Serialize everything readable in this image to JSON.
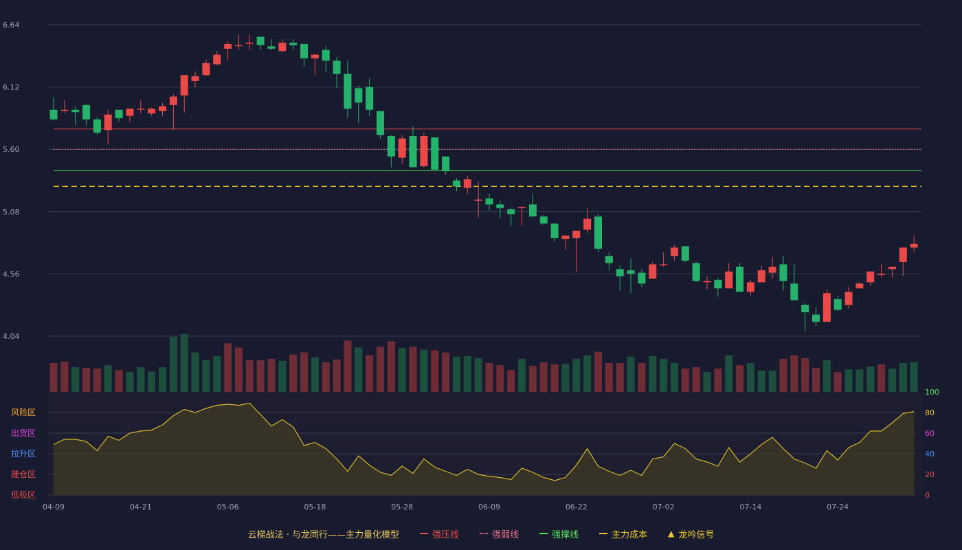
{
  "colors": {
    "up": "#e84a4a",
    "down": "#26b26b",
    "vol_up": "#6e2d36",
    "vol_down": "#1d4f3e",
    "grid": "#3a3d52",
    "axis_text": "#9aa0b8",
    "pressure": "#e84a4a",
    "weak": "#e8708a",
    "support": "#4ee65a",
    "cost": "#f0c82a",
    "signal": "#f0c82a",
    "osc_line": "#d9b530",
    "osc_fill": "#3a3425"
  },
  "legend": {
    "model": "云梯战法 · 与龙同行——主力量化模型",
    "pressure": "强压线",
    "weak": "强弱线",
    "support": "强撑线",
    "cost": "主力成本",
    "signal": "龙吟信号",
    "signal_icon": "▲"
  },
  "chart_data": {
    "type": "candlestick",
    "price_ticks": [
      "6.64",
      "6.12",
      "5.60",
      "5.08",
      "4.56",
      "4.04"
    ],
    "ylim": [
      4.04,
      6.64
    ],
    "x_ticks": [
      {
        "index": 0,
        "label": "04-09"
      },
      {
        "index": 8,
        "label": "04-21"
      },
      {
        "index": 16,
        "label": "05-06"
      },
      {
        "index": 24,
        "label": "05-18"
      },
      {
        "index": 32,
        "label": "05-28"
      },
      {
        "index": 40,
        "label": "06-09"
      },
      {
        "index": 48,
        "label": "06-22"
      },
      {
        "index": 56,
        "label": "07-02"
      },
      {
        "index": 64,
        "label": "07-14"
      },
      {
        "index": 72,
        "label": "07-24"
      }
    ],
    "candles": [
      [
        5.93,
        5.85,
        6.03,
        5.84
      ],
      [
        5.93,
        5.93,
        6.01,
        5.9
      ],
      [
        5.93,
        5.91,
        5.96,
        5.8
      ],
      [
        5.97,
        5.85,
        5.98,
        5.8
      ],
      [
        5.85,
        5.74,
        5.87,
        5.72
      ],
      [
        5.76,
        5.89,
        5.93,
        5.64
      ],
      [
        5.93,
        5.86,
        5.93,
        5.83
      ],
      [
        5.88,
        5.94,
        5.94,
        5.83
      ],
      [
        5.94,
        5.94,
        6.01,
        5.9
      ],
      [
        5.9,
        5.94,
        5.95,
        5.88
      ],
      [
        5.92,
        5.96,
        5.99,
        5.88
      ],
      [
        5.97,
        6.04,
        6.06,
        5.76
      ],
      [
        6.05,
        6.22,
        6.22,
        5.91
      ],
      [
        6.17,
        6.21,
        6.25,
        6.12
      ],
      [
        6.22,
        6.32,
        6.35,
        6.21
      ],
      [
        6.31,
        6.39,
        6.42,
        6.3
      ],
      [
        6.44,
        6.48,
        6.5,
        6.34
      ],
      [
        6.47,
        6.47,
        6.56,
        6.43
      ],
      [
        6.49,
        6.49,
        6.56,
        6.43
      ],
      [
        6.54,
        6.47,
        6.54,
        6.43
      ],
      [
        6.46,
        6.44,
        6.52,
        6.43
      ],
      [
        6.42,
        6.49,
        6.52,
        6.41
      ],
      [
        6.49,
        6.47,
        6.52,
        6.43
      ],
      [
        6.48,
        6.36,
        6.48,
        6.29
      ],
      [
        6.36,
        6.39,
        6.4,
        6.22
      ],
      [
        6.43,
        6.34,
        6.46,
        6.24
      ],
      [
        6.34,
        6.23,
        6.37,
        6.11
      ],
      [
        6.23,
        5.94,
        6.34,
        5.86
      ],
      [
        6.11,
        5.99,
        6.13,
        5.82
      ],
      [
        6.12,
        5.93,
        6.19,
        5.88
      ],
      [
        5.92,
        5.72,
        5.92,
        5.69
      ],
      [
        5.71,
        5.54,
        5.72,
        5.45
      ],
      [
        5.53,
        5.69,
        5.72,
        5.48
      ],
      [
        5.71,
        5.45,
        5.79,
        5.45
      ],
      [
        5.46,
        5.71,
        5.74,
        5.45
      ],
      [
        5.7,
        5.43,
        5.7,
        5.43
      ],
      [
        5.54,
        5.42,
        5.54,
        5.39
      ],
      [
        5.34,
        5.29,
        5.36,
        5.25
      ],
      [
        5.28,
        5.35,
        5.38,
        5.23
      ],
      [
        5.18,
        5.18,
        5.33,
        5.03
      ],
      [
        5.19,
        5.14,
        5.23,
        5.09
      ],
      [
        5.14,
        5.11,
        5.17,
        5.03
      ],
      [
        5.1,
        5.06,
        5.11,
        4.96
      ],
      [
        5.12,
        5.12,
        5.12,
        4.96
      ],
      [
        5.14,
        5.04,
        5.23,
        5.04
      ],
      [
        5.04,
        4.98,
        5.05,
        4.97
      ],
      [
        4.98,
        4.86,
        4.98,
        4.83
      ],
      [
        4.85,
        4.88,
        4.88,
        4.76
      ],
      [
        4.86,
        4.92,
        4.92,
        4.58
      ],
      [
        4.93,
        5.02,
        5.11,
        4.9
      ],
      [
        5.04,
        4.77,
        5.06,
        4.74
      ],
      [
        4.71,
        4.65,
        4.74,
        4.59
      ],
      [
        4.6,
        4.54,
        4.63,
        4.42
      ],
      [
        4.59,
        4.56,
        4.69,
        4.4
      ],
      [
        4.57,
        4.48,
        4.6,
        4.45
      ],
      [
        4.52,
        4.64,
        4.66,
        4.52
      ],
      [
        4.64,
        4.64,
        4.74,
        4.62
      ],
      [
        4.71,
        4.78,
        4.8,
        4.67
      ],
      [
        4.79,
        4.67,
        4.79,
        4.66
      ],
      [
        4.65,
        4.5,
        4.66,
        4.49
      ],
      [
        4.5,
        4.5,
        4.54,
        4.43
      ],
      [
        4.51,
        4.44,
        4.53,
        4.37
      ],
      [
        4.44,
        4.58,
        4.65,
        4.44
      ],
      [
        4.62,
        4.41,
        4.65,
        4.41
      ],
      [
        4.41,
        4.49,
        4.51,
        4.38
      ],
      [
        4.49,
        4.59,
        4.63,
        4.53
      ],
      [
        4.57,
        4.62,
        4.7,
        4.52
      ],
      [
        4.64,
        4.5,
        4.71,
        4.42
      ],
      [
        4.48,
        4.34,
        4.64,
        4.34
      ],
      [
        4.3,
        4.24,
        4.32,
        4.08
      ],
      [
        4.22,
        4.16,
        4.28,
        4.12
      ],
      [
        4.16,
        4.4,
        4.43,
        4.16
      ],
      [
        4.35,
        4.26,
        4.38,
        4.25
      ],
      [
        4.3,
        4.41,
        4.45,
        4.27
      ],
      [
        4.44,
        4.48,
        4.49,
        4.45
      ],
      [
        4.49,
        4.58,
        4.58,
        4.46
      ],
      [
        4.56,
        4.56,
        4.64,
        4.53
      ],
      [
        4.6,
        4.62,
        4.62,
        4.53
      ],
      [
        4.66,
        4.78,
        4.78,
        4.54
      ],
      [
        4.78,
        4.81,
        4.88,
        4.74
      ]
    ],
    "volumes": [
      {
        "v": 41,
        "up": true
      },
      {
        "v": 43,
        "up": true
      },
      {
        "v": 35,
        "up": false
      },
      {
        "v": 34,
        "up": true
      },
      {
        "v": 33,
        "up": true
      },
      {
        "v": 38,
        "up": false
      },
      {
        "v": 31,
        "up": true
      },
      {
        "v": 28,
        "up": false
      },
      {
        "v": 35,
        "up": false
      },
      {
        "v": 29,
        "up": false
      },
      {
        "v": 35,
        "up": false
      },
      {
        "v": 78,
        "up": false
      },
      {
        "v": 82,
        "up": false
      },
      {
        "v": 56,
        "up": false
      },
      {
        "v": 45,
        "up": false
      },
      {
        "v": 51,
        "up": false
      },
      {
        "v": 69,
        "up": true
      },
      {
        "v": 63,
        "up": true
      },
      {
        "v": 45,
        "up": true
      },
      {
        "v": 45,
        "up": true
      },
      {
        "v": 47,
        "up": true
      },
      {
        "v": 44,
        "up": false
      },
      {
        "v": 53,
        "up": true
      },
      {
        "v": 56,
        "up": true
      },
      {
        "v": 49,
        "up": false
      },
      {
        "v": 42,
        "up": true
      },
      {
        "v": 46,
        "up": true
      },
      {
        "v": 73,
        "up": true
      },
      {
        "v": 63,
        "up": false
      },
      {
        "v": 52,
        "up": true
      },
      {
        "v": 64,
        "up": true
      },
      {
        "v": 72,
        "up": true
      },
      {
        "v": 62,
        "up": false
      },
      {
        "v": 64,
        "up": true
      },
      {
        "v": 60,
        "up": false
      },
      {
        "v": 59,
        "up": true
      },
      {
        "v": 56,
        "up": true
      },
      {
        "v": 50,
        "up": false
      },
      {
        "v": 51,
        "up": false
      },
      {
        "v": 48,
        "up": false
      },
      {
        "v": 41,
        "up": true
      },
      {
        "v": 38,
        "up": true
      },
      {
        "v": 31,
        "up": true
      },
      {
        "v": 47,
        "up": false
      },
      {
        "v": 37,
        "up": true
      },
      {
        "v": 42,
        "up": true
      },
      {
        "v": 39,
        "up": true
      },
      {
        "v": 40,
        "up": false
      },
      {
        "v": 47,
        "up": false
      },
      {
        "v": 52,
        "up": false
      },
      {
        "v": 57,
        "up": true
      },
      {
        "v": 41,
        "up": true
      },
      {
        "v": 41,
        "up": true
      },
      {
        "v": 50,
        "up": false
      },
      {
        "v": 41,
        "up": true
      },
      {
        "v": 51,
        "up": false
      },
      {
        "v": 47,
        "up": false
      },
      {
        "v": 41,
        "up": false
      },
      {
        "v": 33,
        "up": true
      },
      {
        "v": 35,
        "up": true
      },
      {
        "v": 28,
        "up": false
      },
      {
        "v": 33,
        "up": true
      },
      {
        "v": 52,
        "up": false
      },
      {
        "v": 38,
        "up": true
      },
      {
        "v": 41,
        "up": false
      },
      {
        "v": 30,
        "up": false
      },
      {
        "v": 30,
        "up": false
      },
      {
        "v": 47,
        "up": true
      },
      {
        "v": 52,
        "up": true
      },
      {
        "v": 48,
        "up": true
      },
      {
        "v": 34,
        "up": true
      },
      {
        "v": 45,
        "up": false
      },
      {
        "v": 28,
        "up": true
      },
      {
        "v": 32,
        "up": false
      },
      {
        "v": 32,
        "up": false
      },
      {
        "v": 36,
        "up": false
      },
      {
        "v": 39,
        "up": true
      },
      {
        "v": 33,
        "up": false
      },
      {
        "v": 41,
        "up": false
      },
      {
        "v": 42,
        "up": false
      }
    ],
    "lines": {
      "pressure": 5.77,
      "weak": 5.6,
      "support": 5.42,
      "cost": 5.29
    },
    "oscillator": {
      "ylim": [
        0,
        100
      ],
      "right_ticks": [
        {
          "value": 100,
          "label": "100",
          "color": "#4ee65a"
        },
        {
          "value": 80,
          "label": "80",
          "color": "#f0c82a"
        },
        {
          "value": 60,
          "label": "60",
          "color": "#e040e0"
        },
        {
          "value": 40,
          "label": "40",
          "color": "#4a90ff"
        },
        {
          "value": 20,
          "label": "20",
          "color": "#e84a4a"
        },
        {
          "value": 0,
          "label": "0",
          "color": "#e84a4a"
        }
      ],
      "zones": [
        {
          "value": 80,
          "label": "风险区",
          "color": "#f0a020"
        },
        {
          "value": 60,
          "label": "出货区",
          "color": "#e040e0"
        },
        {
          "value": 40,
          "label": "拉升区",
          "color": "#4a90ff"
        },
        {
          "value": 20,
          "label": "建仓区",
          "color": "#e84a4a"
        },
        {
          "value": 0,
          "label": "低吸区",
          "color": "#e84a4a"
        }
      ],
      "values": [
        49,
        54,
        54,
        52,
        43,
        57,
        53,
        60,
        62,
        63,
        68,
        77,
        83,
        80,
        84,
        87,
        88,
        87,
        89,
        78,
        67,
        73,
        66,
        48,
        51,
        45,
        35,
        23,
        38,
        29,
        22,
        19,
        28,
        21,
        35,
        27,
        23,
        19,
        25,
        20,
        18,
        17,
        15,
        26,
        22,
        17,
        14,
        17,
        29,
        45,
        28,
        23,
        19,
        24,
        19,
        35,
        37,
        50,
        45,
        35,
        32,
        28,
        46,
        32,
        40,
        49,
        56,
        45,
        35,
        31,
        26,
        43,
        34,
        46,
        51,
        62,
        62,
        70,
        79,
        81
      ]
    }
  }
}
